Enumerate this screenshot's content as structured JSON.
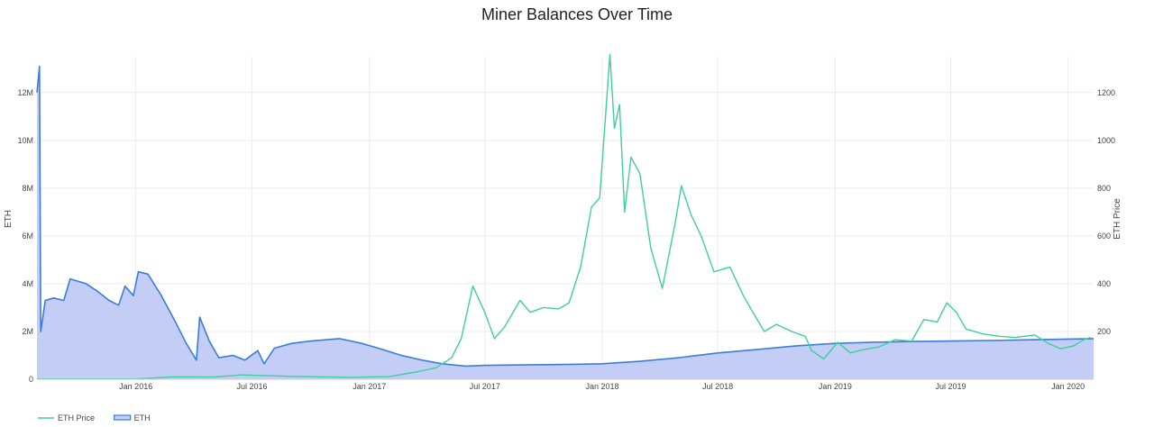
{
  "chart_data": {
    "type": "line",
    "title": "Miner Balances Over Time",
    "x": {
      "type": "date",
      "range": [
        "2015-07-30",
        "2020-02-10"
      ],
      "ticks": [
        "Jan 2016",
        "Jul 2016",
        "Jan 2017",
        "Jul 2017",
        "Jan 2018",
        "Jul 2018",
        "Jan 2019",
        "Jul 2019",
        "Jan 2020"
      ]
    },
    "y_left": {
      "label": "ETH",
      "range": [
        0,
        13500000
      ],
      "ticks": [
        "0",
        "2M",
        "4M",
        "6M",
        "8M",
        "10M",
        "12M"
      ]
    },
    "y_right": {
      "label": "ETH Price",
      "range": [
        0,
        1350
      ],
      "ticks": [
        "200",
        "400",
        "600",
        "800",
        "1000",
        "1200"
      ]
    },
    "grid": true,
    "legend_position": "bottom-left",
    "series": [
      {
        "name": "ETH Price",
        "axis": "right",
        "color": "#3ecf9e",
        "style": "line",
        "points": [
          [
            "2015-07-30",
            1
          ],
          [
            "2015-10-01",
            1
          ],
          [
            "2016-01-01",
            1
          ],
          [
            "2016-03-01",
            10
          ],
          [
            "2016-05-01",
            9
          ],
          [
            "2016-06-15",
            18
          ],
          [
            "2016-09-01",
            12
          ],
          [
            "2016-12-01",
            8
          ],
          [
            "2017-02-01",
            11
          ],
          [
            "2017-03-15",
            30
          ],
          [
            "2017-04-15",
            48
          ],
          [
            "2017-05-10",
            90
          ],
          [
            "2017-05-25",
            170
          ],
          [
            "2017-06-12",
            390
          ],
          [
            "2017-07-01",
            280
          ],
          [
            "2017-07-16",
            170
          ],
          [
            "2017-08-01",
            220
          ],
          [
            "2017-08-25",
            330
          ],
          [
            "2017-09-10",
            280
          ],
          [
            "2017-10-01",
            300
          ],
          [
            "2017-10-25",
            295
          ],
          [
            "2017-11-10",
            320
          ],
          [
            "2017-11-28",
            470
          ],
          [
            "2017-12-15",
            720
          ],
          [
            "2017-12-28",
            760
          ],
          [
            "2018-01-06",
            1100
          ],
          [
            "2018-01-13",
            1360
          ],
          [
            "2018-01-20",
            1050
          ],
          [
            "2018-01-28",
            1150
          ],
          [
            "2018-02-05",
            700
          ],
          [
            "2018-02-15",
            930
          ],
          [
            "2018-03-01",
            860
          ],
          [
            "2018-03-18",
            550
          ],
          [
            "2018-04-05",
            380
          ],
          [
            "2018-04-25",
            650
          ],
          [
            "2018-05-05",
            810
          ],
          [
            "2018-05-20",
            690
          ],
          [
            "2018-06-05",
            600
          ],
          [
            "2018-06-25",
            450
          ],
          [
            "2018-07-20",
            470
          ],
          [
            "2018-08-10",
            350
          ],
          [
            "2018-08-25",
            280
          ],
          [
            "2018-09-12",
            200
          ],
          [
            "2018-10-01",
            230
          ],
          [
            "2018-10-25",
            200
          ],
          [
            "2018-11-15",
            180
          ],
          [
            "2018-11-25",
            120
          ],
          [
            "2018-12-14",
            85
          ],
          [
            "2019-01-05",
            155
          ],
          [
            "2019-01-25",
            110
          ],
          [
            "2019-02-15",
            125
          ],
          [
            "2019-03-10",
            135
          ],
          [
            "2019-04-05",
            165
          ],
          [
            "2019-05-01",
            160
          ],
          [
            "2019-05-20",
            250
          ],
          [
            "2019-06-10",
            240
          ],
          [
            "2019-06-25",
            320
          ],
          [
            "2019-07-10",
            280
          ],
          [
            "2019-07-25",
            210
          ],
          [
            "2019-08-20",
            190
          ],
          [
            "2019-09-15",
            180
          ],
          [
            "2019-10-10",
            175
          ],
          [
            "2019-11-10",
            185
          ],
          [
            "2019-12-01",
            150
          ],
          [
            "2019-12-20",
            128
          ],
          [
            "2020-01-10",
            140
          ],
          [
            "2020-01-25",
            165
          ],
          [
            "2020-02-05",
            175
          ]
        ]
      },
      {
        "name": "ETH",
        "axis": "left",
        "color": "#3b7dd8",
        "fill": "#c3cdf5",
        "style": "area",
        "points": [
          [
            "2015-07-30",
            12000000
          ],
          [
            "2015-08-03",
            13100000
          ],
          [
            "2015-08-05",
            2000000
          ],
          [
            "2015-08-12",
            3300000
          ],
          [
            "2015-08-25",
            3400000
          ],
          [
            "2015-09-10",
            3300000
          ],
          [
            "2015-09-20",
            4200000
          ],
          [
            "2015-10-15",
            4000000
          ],
          [
            "2015-11-01",
            3700000
          ],
          [
            "2015-11-20",
            3300000
          ],
          [
            "2015-12-05",
            3100000
          ],
          [
            "2015-12-15",
            3900000
          ],
          [
            "2015-12-28",
            3500000
          ],
          [
            "2016-01-05",
            4500000
          ],
          [
            "2016-01-20",
            4400000
          ],
          [
            "2016-02-10",
            3500000
          ],
          [
            "2016-03-01",
            2500000
          ],
          [
            "2016-03-20",
            1500000
          ],
          [
            "2016-04-05",
            800000
          ],
          [
            "2016-04-10",
            2600000
          ],
          [
            "2016-04-25",
            1600000
          ],
          [
            "2016-05-10",
            900000
          ],
          [
            "2016-06-01",
            1000000
          ],
          [
            "2016-06-20",
            800000
          ],
          [
            "2016-07-10",
            1200000
          ],
          [
            "2016-07-20",
            650000
          ],
          [
            "2016-08-05",
            1300000
          ],
          [
            "2016-09-01",
            1500000
          ],
          [
            "2016-10-01",
            1600000
          ],
          [
            "2016-11-15",
            1700000
          ],
          [
            "2016-12-20",
            1500000
          ],
          [
            "2017-01-15",
            1300000
          ],
          [
            "2017-02-20",
            1000000
          ],
          [
            "2017-03-25",
            800000
          ],
          [
            "2017-04-25",
            650000
          ],
          [
            "2017-06-01",
            550000
          ],
          [
            "2017-07-01",
            580000
          ],
          [
            "2017-09-01",
            600000
          ],
          [
            "2017-11-01",
            620000
          ],
          [
            "2018-01-01",
            650000
          ],
          [
            "2018-03-01",
            750000
          ],
          [
            "2018-05-01",
            900000
          ],
          [
            "2018-07-01",
            1100000
          ],
          [
            "2018-09-01",
            1250000
          ],
          [
            "2018-11-01",
            1400000
          ],
          [
            "2019-01-01",
            1500000
          ],
          [
            "2019-03-01",
            1550000
          ],
          [
            "2019-05-01",
            1580000
          ],
          [
            "2019-07-01",
            1600000
          ],
          [
            "2019-09-01",
            1620000
          ],
          [
            "2019-11-01",
            1650000
          ],
          [
            "2020-01-01",
            1680000
          ],
          [
            "2020-02-10",
            1700000
          ]
        ]
      }
    ]
  }
}
